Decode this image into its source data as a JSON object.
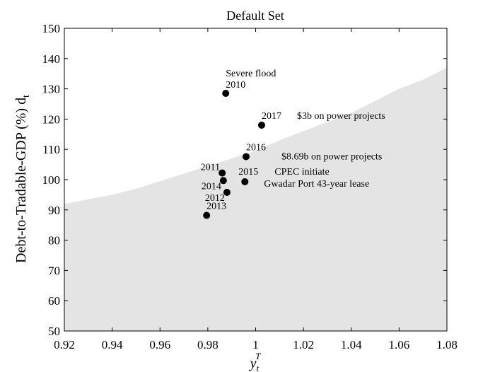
{
  "chart_data": {
    "type": "scatter",
    "title": "Default Set",
    "xlabel": {
      "main": "y",
      "sub": "t",
      "sup": "T"
    },
    "ylabel": {
      "main": "Debt-to-Tradable-GDP (%) d",
      "sub": "t"
    },
    "xlim": [
      0.92,
      1.08
    ],
    "ylim": [
      50,
      150
    ],
    "x_ticks": [
      0.92,
      0.94,
      0.96,
      0.98,
      1,
      1.02,
      1.04,
      1.06,
      1.08
    ],
    "x_tick_labels": [
      "0.92",
      "0.94",
      "0.96",
      "0.98",
      "1",
      "1.02",
      "1.04",
      "1.06",
      "1.08"
    ],
    "y_ticks": [
      50,
      60,
      70,
      80,
      90,
      100,
      110,
      120,
      130,
      140,
      150
    ],
    "y_tick_labels": [
      "50",
      "60",
      "70",
      "80",
      "90",
      "100",
      "110",
      "120",
      "130",
      "140",
      "150"
    ],
    "grid": false,
    "default_set_boundary": [
      {
        "x": 0.92,
        "y": 92
      },
      {
        "x": 0.93,
        "y": 93.5
      },
      {
        "x": 0.94,
        "y": 95
      },
      {
        "x": 0.95,
        "y": 97
      },
      {
        "x": 0.96,
        "y": 99.5
      },
      {
        "x": 0.97,
        "y": 102
      },
      {
        "x": 0.98,
        "y": 104.5
      },
      {
        "x": 0.99,
        "y": 107
      },
      {
        "x": 1.0,
        "y": 109.5
      },
      {
        "x": 1.01,
        "y": 113
      },
      {
        "x": 1.02,
        "y": 116
      },
      {
        "x": 1.03,
        "y": 119
      },
      {
        "x": 1.04,
        "y": 122
      },
      {
        "x": 1.05,
        "y": 126
      },
      {
        "x": 1.06,
        "y": 130
      },
      {
        "x": 1.07,
        "y": 133
      },
      {
        "x": 1.08,
        "y": 137
      }
    ],
    "points": [
      {
        "year": "2010",
        "x": 0.9875,
        "y": 128.5,
        "annotation": "Severe flood"
      },
      {
        "year": "2011",
        "x": 0.986,
        "y": 102.2
      },
      {
        "year": "2012",
        "x": 0.988,
        "y": 95.8
      },
      {
        "year": "2013",
        "x": 0.9795,
        "y": 88.2
      },
      {
        "year": "2014",
        "x": 0.9865,
        "y": 99.7
      },
      {
        "year": "2015",
        "x": 0.9955,
        "y": 99.3,
        "annotation": "CPEC initiate",
        "annotation2": "Gwadar Port 43-year lease"
      },
      {
        "year": "2016",
        "x": 0.996,
        "y": 107.6,
        "annotation": "$8.69b on power projects"
      },
      {
        "year": "2017",
        "x": 1.0025,
        "y": 118.0,
        "annotation": "$3b on power projects"
      }
    ],
    "colors": {
      "default_region": "#e4e4e4",
      "marker": "#000000",
      "axis": "#000000"
    }
  }
}
